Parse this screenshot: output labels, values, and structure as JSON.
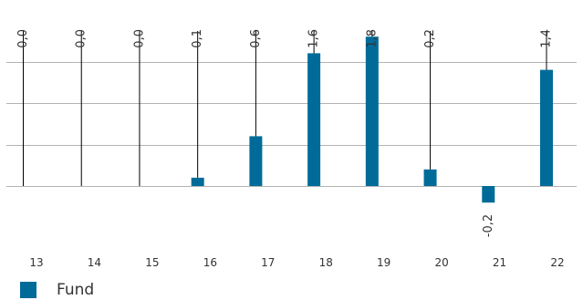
{
  "chart_data": {
    "type": "bar",
    "categories": [
      "13",
      "14",
      "15",
      "16",
      "17",
      "18",
      "19",
      "20",
      "21",
      "22"
    ],
    "series": [
      {
        "name": "Fund",
        "values": [
          0.0,
          0.0,
          0.0,
          0.1,
          0.6,
          1.6,
          1.8,
          0.2,
          -0.2,
          1.4
        ]
      }
    ],
    "data_labels": [
      "0,0",
      "0,0",
      "0,0",
      "0,1",
      "0,6",
      "1,6",
      "1,8",
      "0,2",
      "-0,2",
      "1,4"
    ],
    "ylim": [
      -0.3,
      2.0
    ],
    "gridlines": [
      0,
      0.5,
      1.0,
      1.5
    ],
    "grid": true,
    "legend_position": "bottom-left",
    "colors": {
      "bar": "#006b99",
      "grid": "#b3b3b3",
      "leader": "#000000",
      "text": "#333333"
    }
  }
}
